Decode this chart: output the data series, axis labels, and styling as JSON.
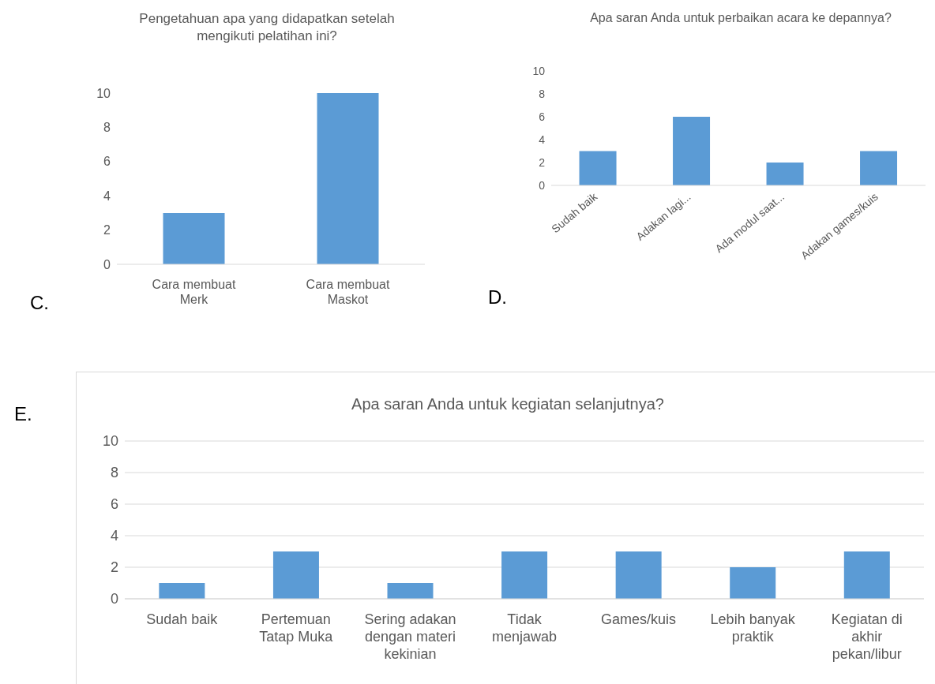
{
  "chart_data": [
    {
      "type": "bar",
      "title": "Pengetahuan apa yang didapatkan setelah mengikuti pelatihan ini?",
      "categories": [
        "Cara membuat Merk",
        "Cara membuat Maskot"
      ],
      "values": [
        3,
        10
      ],
      "color": "#5b9bd5",
      "ylim": [
        0,
        10
      ],
      "yticks": [
        0,
        2,
        4,
        6,
        8,
        10
      ],
      "grid": false,
      "legend": false,
      "annotations": [
        "C."
      ]
    },
    {
      "type": "bar",
      "title": "Apa saran Anda untuk perbaikan acara ke depannya?",
      "categories": [
        "Sudah baik",
        "Adakan lagi...",
        "Ada modul saat...",
        "Adakan games/kuis"
      ],
      "values": [
        3,
        6,
        2,
        3
      ],
      "color": "#5b9bd5",
      "ylim": [
        0,
        10
      ],
      "yticks": [
        0,
        2,
        4,
        6,
        8,
        10
      ],
      "grid": false,
      "legend": false,
      "annotations": [
        "D."
      ]
    },
    {
      "type": "bar",
      "title": "Apa saran Anda untuk kegiatan selanjutnya?",
      "categories": [
        "Sudah baik",
        "Pertemuan Tatap Muka",
        "Sering adakan dengan materi kekinian",
        "Tidak menjawab",
        "Games/kuis",
        "Lebih banyak praktik",
        "Kegiatan di akhir pekan/libur"
      ],
      "values": [
        1,
        3,
        1,
        3,
        3,
        2,
        3
      ],
      "color": "#5b9bd5",
      "ylim": [
        0,
        10
      ],
      "yticks": [
        0,
        2,
        4,
        6,
        8,
        10
      ],
      "grid": "y",
      "legend": false,
      "annotations": [
        "E."
      ]
    }
  ]
}
